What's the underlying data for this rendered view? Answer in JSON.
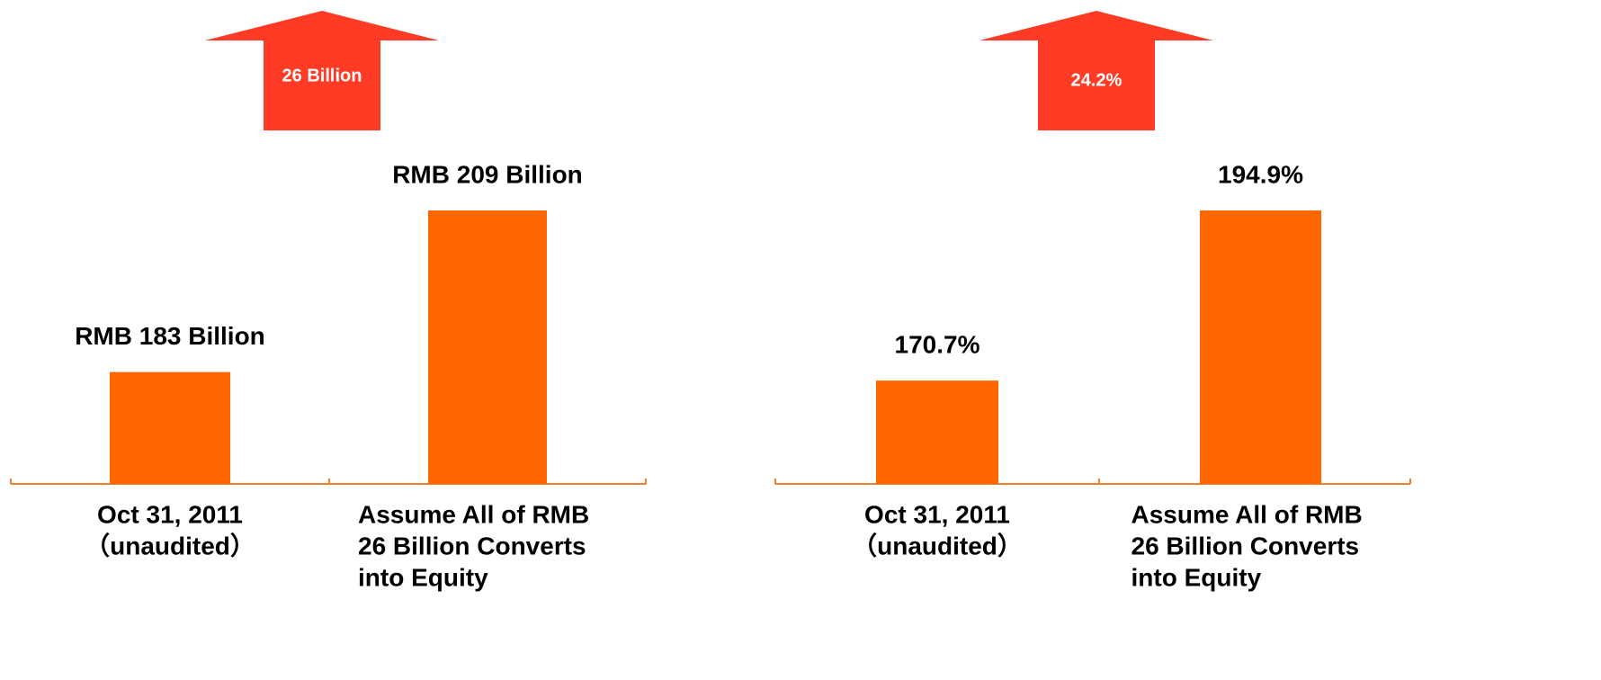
{
  "chart_data": [
    {
      "type": "bar",
      "categories": [
        [
          "Oct 31, 2011",
          "（unaudited）"
        ],
        [
          "Assume All of RMB",
          "26 Billion Converts",
          "into Equity"
        ]
      ],
      "values": [
        183,
        209
      ],
      "value_labels": [
        "RMB 183 Billion",
        "RMB 209 Billion"
      ],
      "color": "#ff6600",
      "ylim": [
        165,
        209
      ],
      "annotation": {
        "text": "26 Billion",
        "color": "#ff3b26"
      }
    },
    {
      "type": "bar",
      "categories": [
        [
          "Oct 31, 2011",
          "（unaudited）"
        ],
        [
          "Assume All of RMB",
          "26 Billion Converts",
          "into Equity"
        ]
      ],
      "values": [
        170.7,
        194.9
      ],
      "value_labels": [
        "170.7%",
        "194.9%"
      ],
      "color": "#ff6600",
      "ylim": [
        156,
        194.9
      ],
      "annotation": {
        "text": "24.2%",
        "color": "#ff3b26"
      }
    }
  ]
}
